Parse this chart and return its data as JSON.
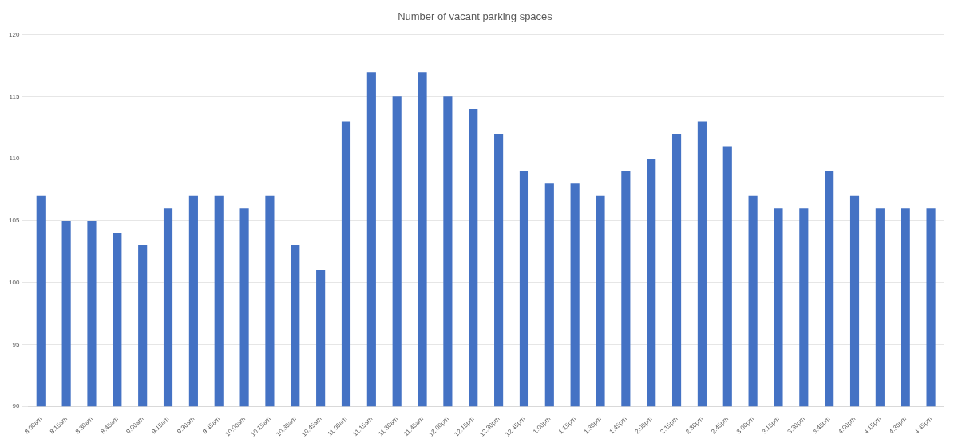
{
  "chart_data": {
    "type": "bar",
    "title": "Number of vacant parking spaces",
    "categories": [
      "8:00am",
      "8:15am",
      "8:30am",
      "8:45am",
      "9:00am",
      "9:15am",
      "9:30am",
      "9:45am",
      "10:00am",
      "10:15am",
      "10:30am",
      "10:45am",
      "11:00am",
      "11:15am",
      "11:30am",
      "11:45am",
      "12:00pm",
      "12:15pm",
      "12:30pm",
      "12:45pm",
      "1:00pm",
      "1:15pm",
      "1:30pm",
      "1:45pm",
      "2:00pm",
      "2:15pm",
      "2:30pm",
      "2:45pm",
      "3:00pm",
      "3:15pm",
      "3:30pm",
      "3:45pm",
      "4:00pm",
      "4:15pm",
      "4:30pm",
      "4:45pm"
    ],
    "values": [
      107,
      105,
      105,
      104,
      103,
      106,
      107,
      107,
      106,
      107,
      103,
      101,
      113,
      117,
      115,
      117,
      115,
      114,
      112,
      109,
      108,
      108,
      107,
      109,
      110,
      112,
      113,
      111,
      107,
      106,
      106,
      109,
      107,
      106,
      106,
      106
    ],
    "color": "#4472c4",
    "ylim": [
      90,
      120
    ],
    "yticks": [
      90,
      95,
      100,
      105,
      110,
      115,
      120
    ],
    "grid": "y",
    "legend": false
  }
}
